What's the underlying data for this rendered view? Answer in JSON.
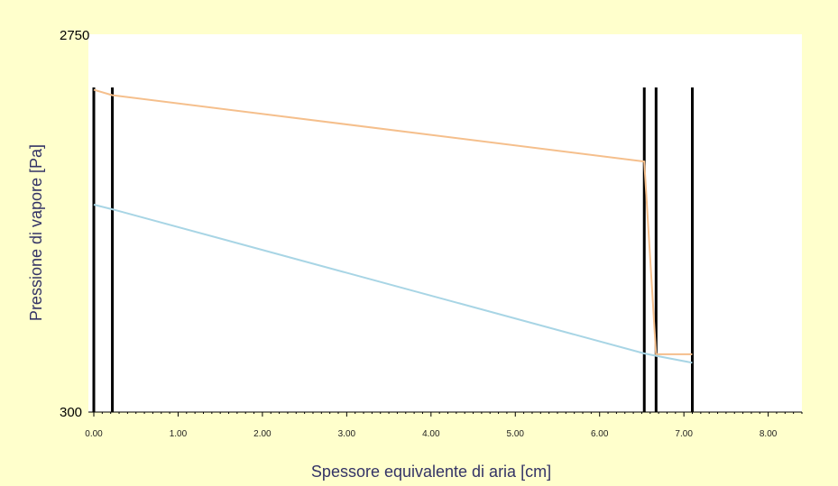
{
  "chart_data": {
    "type": "line",
    "xlabel": "Spessore equivalente di aria [cm]",
    "ylabel": "Pressione di vapore [Pa]",
    "xlim": [
      0,
      8.4
    ],
    "ylim": [
      300,
      2750
    ],
    "y_limit_labels": [
      "2750",
      "300"
    ],
    "x_tick_labels": [
      "0.00",
      "1.00",
      "2.00",
      "3.00",
      "4.00",
      "5.00",
      "6.00",
      "7.00",
      "8.00"
    ],
    "x_ticks": [
      0,
      1,
      2,
      3,
      4,
      5,
      6,
      7,
      8
    ],
    "grid": false,
    "layer_boundaries": [
      0.0,
      0.22,
      6.53,
      6.67,
      7.1
    ],
    "series": [
      {
        "color": "#f5bf8c",
        "x": [
          0.0,
          0.22,
          6.53,
          6.67,
          7.1
        ],
        "y": [
          2390,
          2355,
          1925,
          675,
          675
        ]
      },
      {
        "color": "#a8d5e5",
        "x": [
          0.0,
          0.22,
          6.53,
          6.67,
          7.1
        ],
        "y": [
          1645,
          1615,
          680,
          665,
          620
        ]
      }
    ],
    "colors": {
      "page_background": "#ffffcc",
      "plot_background": "#ffffff",
      "boundary_line": "#000000",
      "axis_title": "#333366"
    }
  }
}
